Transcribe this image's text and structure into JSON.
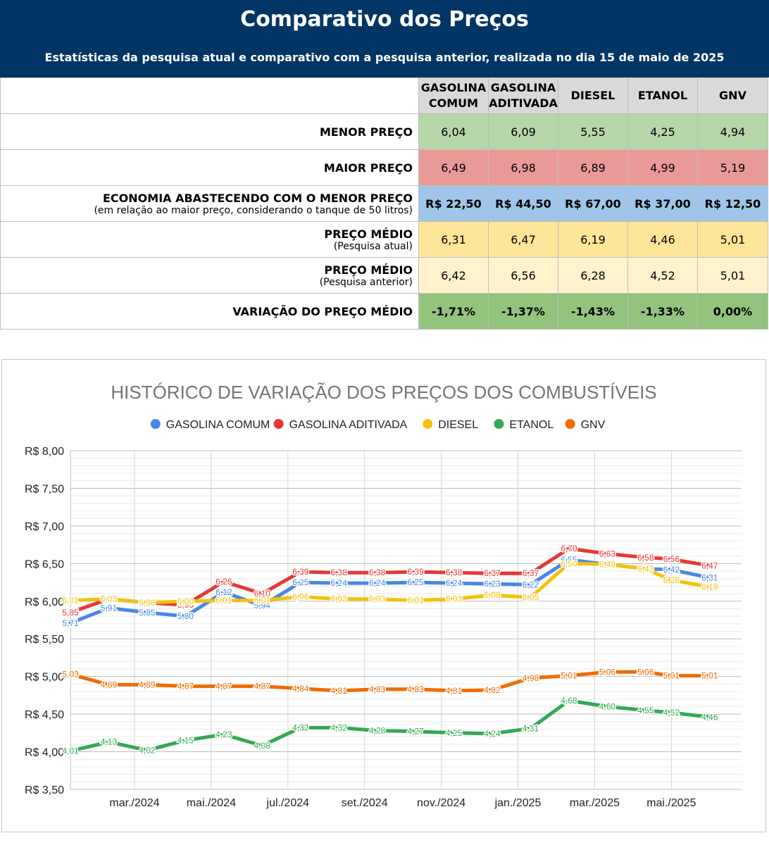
{
  "header": {
    "title": "Comparativo dos Preços",
    "subtitle": "Estatísticas da pesquisa atual e comparativo com a pesquisa anterior, realizada no dia 15 de maio de 2025"
  },
  "table": {
    "columns": [
      {
        "line1": "GASOLINA",
        "line2": "COMUM"
      },
      {
        "line1": "GASOLINA",
        "line2": "ADITIVADA"
      },
      {
        "line1": "DIESEL",
        "line2": ""
      },
      {
        "line1": "ETANOL",
        "line2": ""
      },
      {
        "line1": "GNV",
        "line2": ""
      }
    ],
    "rows": [
      {
        "id": "min",
        "label": "MENOR PREÇO",
        "sub": "",
        "values": [
          "6,04",
          "6,09",
          "5,55",
          "4,25",
          "4,94"
        ]
      },
      {
        "id": "max",
        "label": "MAIOR PREÇO",
        "sub": "",
        "values": [
          "6,49",
          "6,98",
          "6,89",
          "4,99",
          "5,19"
        ]
      },
      {
        "id": "econ",
        "label": "ECONOMIA ABASTECENDO COM O MENOR PREÇO",
        "sub": "(em relação ao maior preço, considerando o tanque de 50 litros)",
        "values": [
          "R$ 22,50",
          "R$ 44,50",
          "R$ 67,00",
          "R$ 37,00",
          "R$ 12,50"
        ]
      },
      {
        "id": "avg",
        "label": "PREÇO MÉDIO",
        "sub": "(Pesquisa atual)",
        "values": [
          "6,31",
          "6,47",
          "6,19",
          "4,46",
          "5,01"
        ]
      },
      {
        "id": "prev",
        "label": "PREÇO MÉDIO",
        "sub": "(Pesquisa anterior)",
        "values": [
          "6,42",
          "6,56",
          "6,28",
          "4,52",
          "5,01"
        ]
      },
      {
        "id": "var",
        "label": "VARIAÇÃO DO PREÇO MÉDIO",
        "sub": "",
        "values": [
          "-1,71%",
          "-1,37%",
          "-1,43%",
          "-1,33%",
          "0,00%"
        ]
      }
    ]
  },
  "chart_data": {
    "type": "line",
    "title": "HISTÓRICO DE VARIAÇÃO DOS PREÇOS DOS COMBUSTÍVEIS",
    "legend_position": "top",
    "grid": true,
    "ylim": [
      3.5,
      8.0
    ],
    "y_ticks": [
      "R$ 3,50",
      "R$ 4,00",
      "R$ 4,50",
      "R$ 5,00",
      "R$ 5,50",
      "R$ 6,00",
      "R$ 6,50",
      "R$ 7,00",
      "R$ 7,50",
      "R$ 8,00"
    ],
    "x_tick_labels": [
      "mar./2024",
      "mai./2024",
      "jul./2024",
      "set./2024",
      "nov./2024",
      "jan./2025",
      "mar./2025",
      "mai./2025"
    ],
    "x_tick_positions": [
      1.67,
      3.67,
      5.67,
      7.67,
      9.67,
      11.67,
      13.67,
      15.67
    ],
    "x": [
      0,
      1,
      2,
      3,
      4,
      5,
      6,
      7,
      8,
      9,
      10,
      11,
      12,
      13,
      14,
      15,
      15.67,
      16.67
    ],
    "series": [
      {
        "name": "GASOLINA COMUM",
        "color": "#4a86e8",
        "values": [
          5.71,
          5.91,
          5.85,
          5.8,
          6.12,
          5.94,
          6.25,
          6.24,
          6.24,
          6.25,
          6.24,
          6.23,
          6.22,
          6.55,
          6.49,
          6.43,
          6.42,
          6.31
        ],
        "labels": [
          "5,71",
          "5,91",
          "5,85",
          "5,80",
          "6,12",
          "5,94",
          "6,25",
          "6,24",
          "6,24",
          "6,25",
          "6,24",
          "6,23",
          "6,22",
          "6,55",
          "6,49",
          "6,43",
          "6,42",
          "6,31"
        ]
      },
      {
        "name": "GASOLINA ADITIVADA",
        "color": "#e53935",
        "values": [
          5.85,
          6.03,
          5.98,
          5.95,
          6.26,
          6.1,
          6.39,
          6.38,
          6.38,
          6.39,
          6.38,
          6.37,
          6.37,
          6.7,
          6.63,
          6.58,
          6.56,
          6.47
        ],
        "labels": [
          "5,85",
          "6,03",
          "5,98",
          "5,95",
          "6,26",
          "6,10",
          "6,39",
          "6,38",
          "6,38",
          "6,39",
          "6,38",
          "6,37",
          "6,37",
          "6,70",
          "6,63",
          "6,58",
          "6,56",
          "6,47"
        ]
      },
      {
        "name": "DIESEL",
        "color": "#f4c20d",
        "values": [
          6.01,
          6.03,
          5.98,
          6.0,
          6.01,
          6.01,
          6.06,
          6.03,
          6.03,
          6.01,
          6.03,
          6.08,
          6.05,
          6.5,
          6.49,
          6.43,
          6.28,
          6.19
        ],
        "labels": [
          "6,01",
          "6,03",
          "5,98",
          "6,00",
          "6,01",
          "6,01",
          "6,06",
          "6,03",
          "6,03",
          "6,01",
          "6,03",
          "6,08",
          "6,05",
          "6,50",
          "6,49",
          "6,43",
          "6,28",
          "6,19"
        ]
      },
      {
        "name": "ETANOL",
        "color": "#34a853",
        "values": [
          4.01,
          4.13,
          4.02,
          4.15,
          4.23,
          4.08,
          4.32,
          4.32,
          4.28,
          4.27,
          4.25,
          4.24,
          4.31,
          4.68,
          4.6,
          4.55,
          4.52,
          4.46
        ],
        "labels": [
          "4,01",
          "4,13",
          "4,02",
          "4,15",
          "4,23",
          "4,08",
          "4,32",
          "4,32",
          "4,28",
          "4,27",
          "4,25",
          "4,24",
          "4,31",
          "4,68",
          "4,60",
          "4,55",
          "4,52",
          "4,46"
        ]
      },
      {
        "name": "GNV",
        "color": "#ef6c00",
        "values": [
          5.03,
          4.89,
          4.89,
          4.87,
          4.87,
          4.87,
          4.84,
          4.81,
          4.83,
          4.83,
          4.81,
          4.82,
          4.98,
          5.01,
          5.06,
          5.06,
          5.01,
          5.01
        ],
        "labels": [
          "5,03",
          "4,89",
          "4,89",
          "4,87",
          "4,87",
          "4,87",
          "4,84",
          "4,81",
          "4,83",
          "4,83",
          "4,81",
          "4,82",
          "4,98",
          "5,01",
          "5,06",
          "5,06",
          "5,01",
          "5,01"
        ]
      }
    ]
  }
}
